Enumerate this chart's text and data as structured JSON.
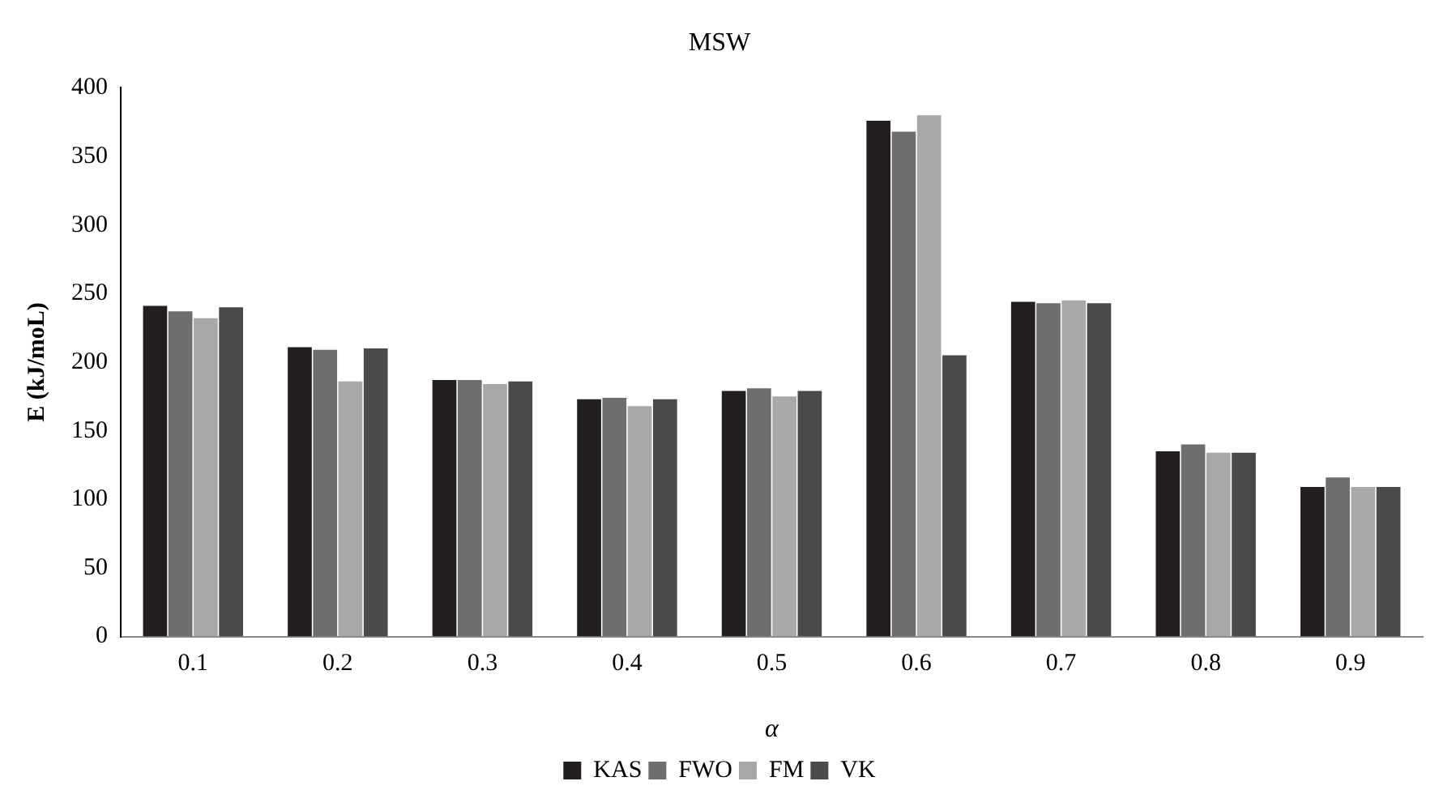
{
  "chart_data": {
    "type": "bar",
    "title": "MSW",
    "xlabel": "α",
    "ylabel": "E (kJ/moL)",
    "categories": [
      "0.1",
      "0.2",
      "0.3",
      "0.4",
      "0.5",
      "0.6",
      "0.7",
      "0.8",
      "0.9"
    ],
    "series": [
      {
        "name": "KAS",
        "color": "#231f20",
        "values": [
          241,
          211,
          187,
          173,
          179,
          376,
          244,
          135,
          109
        ]
      },
      {
        "name": "FWO",
        "color": "#6e6e6e",
        "values": [
          237,
          209,
          187,
          174,
          181,
          368,
          243,
          140,
          116
        ]
      },
      {
        "name": "FM",
        "color": "#a8a8a8",
        "values": [
          232,
          186,
          184,
          168,
          175,
          380,
          245,
          134,
          109
        ]
      },
      {
        "name": "VK",
        "color": "#4a4a4a",
        "values": [
          240,
          210,
          186,
          173,
          179,
          205,
          243,
          134,
          109
        ]
      }
    ],
    "ylim": [
      0,
      400
    ],
    "yticks": [
      0,
      50,
      100,
      150,
      200,
      250,
      300,
      350,
      400
    ],
    "grid": false,
    "legend": "bottom"
  }
}
